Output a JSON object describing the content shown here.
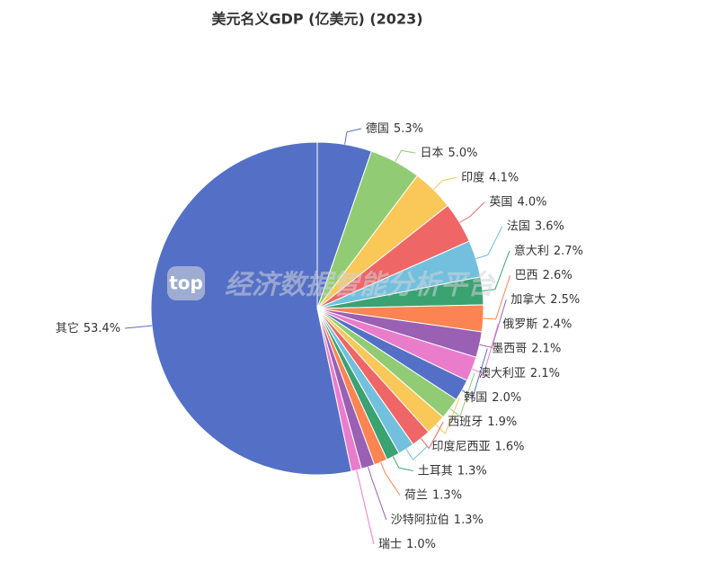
{
  "chart_data": {
    "type": "pie",
    "title": "美元名义GDP (亿美元) (2023)",
    "watermark": "经济数据智能分析平台",
    "watermark_logo": "top",
    "categories": [
      "德国",
      "日本",
      "印度",
      "英国",
      "法国",
      "意大利",
      "巴西",
      "加拿大",
      "俄罗斯",
      "墨西哥",
      "澳大利亚",
      "韩国",
      "西班牙",
      "印度尼西亚",
      "土耳其",
      "荷兰",
      "沙特阿拉伯",
      "瑞士",
      "其它"
    ],
    "values": [
      5.3,
      5.0,
      4.1,
      4.0,
      3.6,
      2.7,
      2.6,
      2.5,
      2.4,
      2.1,
      2.1,
      2.0,
      1.9,
      1.6,
      1.3,
      1.3,
      1.3,
      1.0,
      53.4
    ],
    "value_labels": [
      "5.3%",
      "5.0%",
      "4.1%",
      "4.0%",
      "3.6%",
      "2.7%",
      "2.6%",
      "2.5%",
      "2.4%",
      "2.1%",
      "2.1%",
      "2.0%",
      "1.9%",
      "1.6%",
      "1.3%",
      "1.3%",
      "1.3%",
      "1.0%",
      "53.4%"
    ],
    "colors": [
      "#5470c6",
      "#91cc75",
      "#fac858",
      "#ee6666",
      "#73c0de",
      "#3ba272",
      "#fc8452",
      "#9a60b4",
      "#ea7ccc",
      "#5470c6",
      "#91cc75",
      "#fac858",
      "#ee6666",
      "#73c0de",
      "#3ba272",
      "#fc8452",
      "#9a60b4",
      "#ea7ccc",
      "#5470c6"
    ]
  }
}
